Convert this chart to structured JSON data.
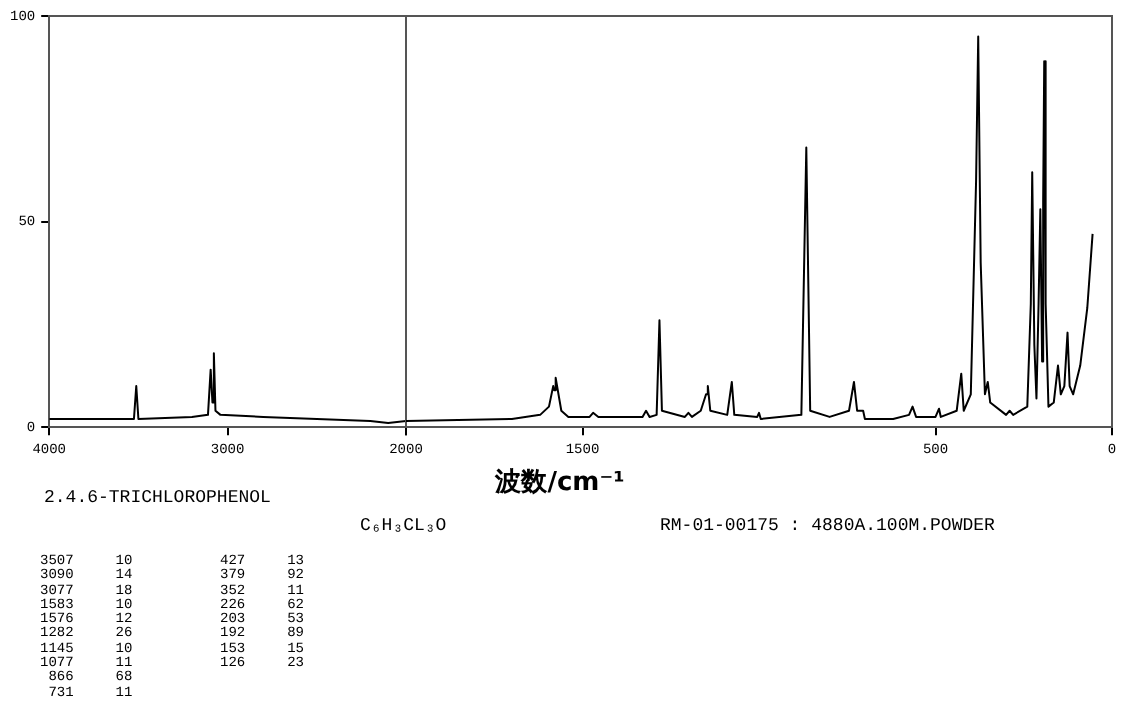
{
  "chart_data": [
    {
      "type": "line",
      "xlim": [
        4000,
        2000
      ],
      "ylim": [
        0,
        100
      ],
      "xticks": [
        4000,
        3000,
        2000
      ],
      "yticks": [
        0,
        50,
        100
      ],
      "grid": false,
      "legend": false,
      "marker": "none",
      "x": [
        4000,
        3600,
        3525,
        3512,
        3500,
        3200,
        3110,
        3095,
        3085,
        3077,
        3068,
        3040,
        2800,
        2500,
        2200,
        2100,
        2000
      ],
      "series": [
        {
          "color": "#000000",
          "values": [
            2,
            2,
            2,
            10,
            2,
            2.5,
            3,
            14,
            6,
            18,
            4,
            3,
            2.5,
            2,
            1.5,
            1,
            1.5
          ]
        }
      ],
      "annotations": [
        "2.4.6-TRICHLOROPHENOL",
        "C₆H₃CL₃O",
        "RM-01-00175 : 4880A.100M.POWDER",
        "3507     10",
        "3090     14",
        "3077     18",
        "1583     10",
        "1576     12",
        "1282     26",
        "1145     10",
        "1077     11",
        " 866     68",
        " 731     11",
        "427     13",
        "379     92",
        "352     11",
        "226     62",
        "203     53",
        "192     89",
        "153     15",
        "126     23"
      ]
    },
    {
      "type": "line",
      "xlim": [
        2000,
        0
      ],
      "ylim": [
        0,
        100
      ],
      "xticks": [
        {
          "value": 2000,
          "label": null
        },
        1500,
        500,
        0
      ],
      "yticks": [
        0,
        50,
        100
      ],
      "tick_labels": "x",
      "grid": false,
      "legend": false,
      "marker": "none",
      "xlabel": "波数/cm⁻¹",
      "x": [
        2000,
        1700,
        1620,
        1595,
        1583,
        1580,
        1576,
        1560,
        1540,
        1480,
        1470,
        1455,
        1330,
        1320,
        1310,
        1290,
        1282,
        1275,
        1210,
        1200,
        1190,
        1165,
        1150,
        1145,
        1138,
        1090,
        1077,
        1070,
        1005,
        1000,
        995,
        880,
        866,
        855,
        800,
        745,
        731,
        722,
        705,
        700,
        620,
        575,
        565,
        555,
        500,
        490,
        485,
        440,
        427,
        420,
        400,
        385,
        379,
        372,
        360,
        352,
        345,
        300,
        290,
        280,
        240,
        230,
        226,
        220,
        214,
        208,
        203,
        198,
        195,
        192,
        188,
        180,
        165,
        153,
        145,
        135,
        126,
        120,
        110,
        90,
        70,
        55
      ],
      "series": [
        {
          "color": "#000000",
          "values": [
            1.5,
            2,
            3,
            5,
            10,
            9,
            12,
            4,
            2.5,
            2.5,
            3.5,
            2.5,
            2.5,
            4,
            2.5,
            3,
            26,
            4,
            2.5,
            3.5,
            2.5,
            4,
            8,
            10,
            4,
            3,
            11,
            3,
            2.5,
            3.5,
            2,
            3,
            68,
            4,
            2.5,
            4,
            11,
            4,
            4,
            2,
            2,
            3,
            5,
            2.5,
            2.5,
            4.5,
            2.5,
            4,
            13,
            4,
            8,
            60,
            95,
            40,
            8,
            11,
            6,
            3,
            4,
            3,
            5,
            30,
            62,
            20,
            7,
            30,
            53,
            16,
            55,
            89,
            30,
            5,
            6,
            15,
            8,
            10,
            23,
            10,
            8,
            15,
            29,
            47
          ]
        }
      ]
    }
  ]
}
